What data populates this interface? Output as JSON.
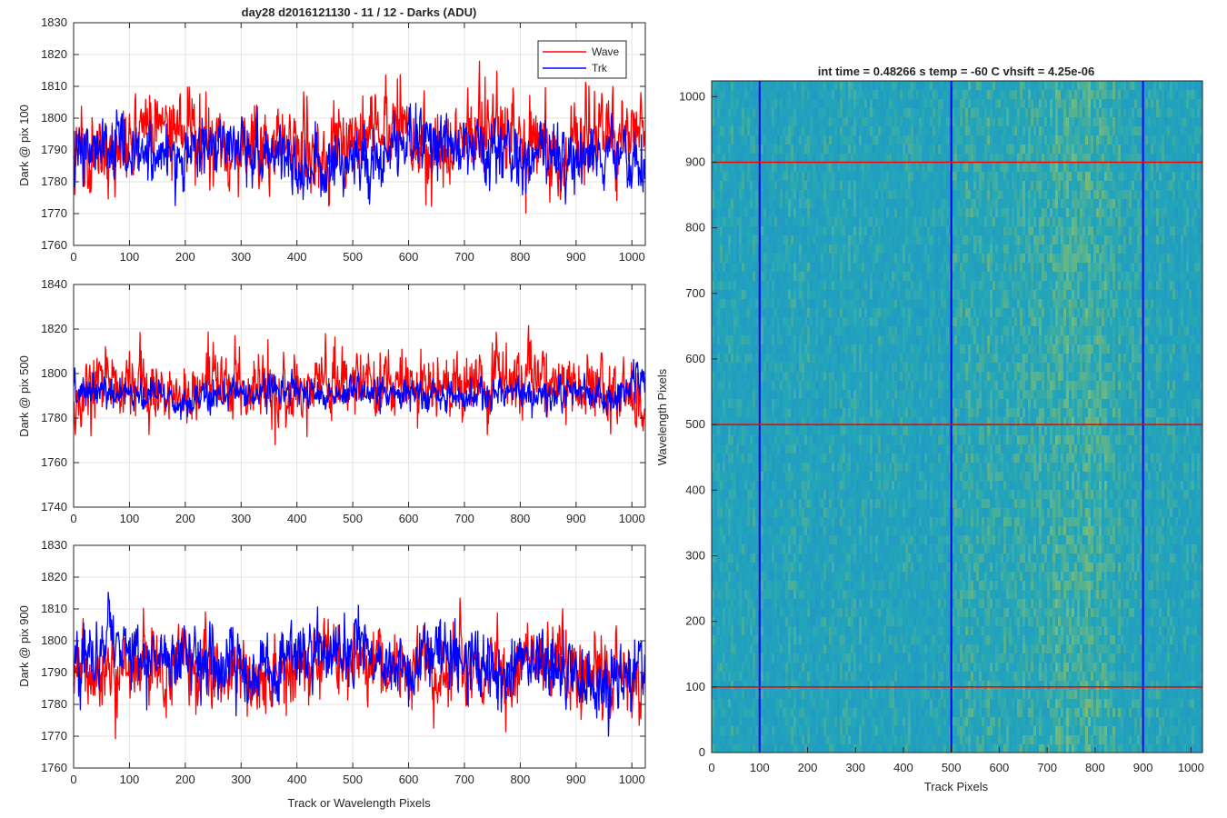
{
  "chart_data": [
    {
      "type": "line",
      "title": "day28 d2016121130 - 11 / 12 - Darks (ADU)",
      "xlabel": "",
      "ylabel": "Dark @ pix 100",
      "xlim": [
        0,
        1024
      ],
      "ylim": [
        1760,
        1830
      ],
      "xticks": [
        0,
        100,
        200,
        300,
        400,
        500,
        600,
        700,
        800,
        900,
        1000
      ],
      "yticks": [
        1760,
        1770,
        1780,
        1790,
        1800,
        1810,
        1820,
        1830
      ],
      "grid": true,
      "legend": "top-right",
      "series_summary": [
        {
          "name": "Wave",
          "color": "#ff0000",
          "mean": 1791,
          "min": 1762,
          "max": 1823
        },
        {
          "name": "Trk",
          "color": "#0000ff",
          "mean": 1790,
          "min": 1767,
          "max": 1812
        }
      ],
      "series": [
        {
          "name": "Wave",
          "color": "#ff0000",
          "x": [
            0,
            64,
            128,
            192,
            256,
            320,
            384,
            448,
            512,
            576,
            640,
            704,
            768,
            832,
            896,
            960,
            1023
          ],
          "values": [
            1792,
            1788,
            1795,
            1800,
            1786,
            1790,
            1796,
            1789,
            1793,
            1798,
            1786,
            1794,
            1797,
            1789,
            1792,
            1795,
            1798
          ]
        },
        {
          "name": "Trk",
          "color": "#0000ff",
          "x": [
            0,
            64,
            128,
            192,
            256,
            320,
            384,
            448,
            512,
            576,
            640,
            704,
            768,
            832,
            896,
            960,
            1023
          ],
          "values": [
            1790,
            1793,
            1788,
            1787,
            1792,
            1791,
            1789,
            1784,
            1786,
            1790,
            1791,
            1792,
            1790,
            1789,
            1788,
            1792,
            1782
          ]
        }
      ]
    },
    {
      "type": "line",
      "title": "",
      "xlabel": "",
      "ylabel": "Dark @ pix 500",
      "xlim": [
        0,
        1024
      ],
      "ylim": [
        1740,
        1840
      ],
      "xticks": [
        0,
        100,
        200,
        300,
        400,
        500,
        600,
        700,
        800,
        900,
        1000
      ],
      "yticks": [
        1740,
        1760,
        1780,
        1800,
        1820,
        1840
      ],
      "grid": true,
      "series_summary": [
        {
          "name": "Wave",
          "color": "#ff0000",
          "mean": 1791,
          "min": 1759,
          "max": 1828
        },
        {
          "name": "Trk",
          "color": "#0000ff",
          "mean": 1791,
          "min": 1776,
          "max": 1810
        }
      ],
      "series": [
        {
          "name": "Wave",
          "color": "#ff0000",
          "x": [
            0,
            64,
            128,
            192,
            256,
            320,
            384,
            448,
            512,
            576,
            640,
            704,
            768,
            832,
            896,
            960,
            1023
          ],
          "values": [
            1790,
            1796,
            1792,
            1789,
            1795,
            1792,
            1790,
            1797,
            1792,
            1795,
            1793,
            1796,
            1797,
            1798,
            1792,
            1794,
            1785
          ]
        },
        {
          "name": "Trk",
          "color": "#0000ff",
          "x": [
            0,
            64,
            128,
            192,
            256,
            320,
            384,
            448,
            512,
            576,
            640,
            704,
            768,
            832,
            896,
            960,
            1023
          ],
          "values": [
            1795,
            1790,
            1793,
            1786,
            1791,
            1790,
            1794,
            1789,
            1793,
            1790,
            1791,
            1790,
            1792,
            1791,
            1792,
            1788,
            1800
          ]
        }
      ]
    },
    {
      "type": "line",
      "title": "",
      "xlabel": "Track or Wavelength Pixels",
      "ylabel": "Dark @ pix 900",
      "xlim": [
        0,
        1024
      ],
      "ylim": [
        1760,
        1830
      ],
      "xticks": [
        0,
        100,
        200,
        300,
        400,
        500,
        600,
        700,
        800,
        900,
        1000
      ],
      "yticks": [
        1760,
        1770,
        1780,
        1790,
        1800,
        1810,
        1820,
        1830
      ],
      "grid": true,
      "series_summary": [
        {
          "name": "Wave",
          "color": "#ff0000",
          "mean": 1792,
          "min": 1766,
          "max": 1821
        },
        {
          "name": "Trk",
          "color": "#0000ff",
          "mean": 1793,
          "min": 1770,
          "max": 1821
        }
      ],
      "series": [
        {
          "name": "Wave",
          "color": "#ff0000",
          "x": [
            0,
            64,
            128,
            192,
            256,
            320,
            384,
            448,
            512,
            576,
            640,
            704,
            768,
            832,
            896,
            960,
            1023
          ],
          "values": [
            1791,
            1790,
            1793,
            1792,
            1790,
            1788,
            1792,
            1794,
            1793,
            1791,
            1795,
            1793,
            1790,
            1794,
            1792,
            1790,
            1789
          ]
        },
        {
          "name": "Trk",
          "color": "#0000ff",
          "x": [
            0,
            64,
            128,
            192,
            256,
            320,
            384,
            448,
            512,
            576,
            640,
            704,
            768,
            832,
            896,
            960,
            1023
          ],
          "values": [
            1792,
            1800,
            1795,
            1794,
            1791,
            1790,
            1796,
            1795,
            1799,
            1790,
            1794,
            1795,
            1791,
            1793,
            1789,
            1786,
            1795
          ]
        }
      ]
    },
    {
      "type": "heatmap",
      "title": "int time = 0.48266 s    temp = -60 C    vhsift = 4.25e-06",
      "xlabel": "Track Pixels",
      "ylabel": "Wavelength Pixels",
      "xlim": [
        0,
        1024
      ],
      "ylim": [
        0,
        1024
      ],
      "xticks": [
        0,
        100,
        200,
        300,
        400,
        500,
        600,
        700,
        800,
        900,
        1000
      ],
      "yticks": [
        0,
        100,
        200,
        300,
        400,
        500,
        600,
        700,
        800,
        900,
        1000
      ],
      "colormap": "parula",
      "colors": {
        "low": "#1f8fcf",
        "mid": "#23a6b8",
        "high": "#b5c94a"
      },
      "vertical_markers": {
        "color": "#0000ff",
        "x": [
          100,
          500,
          900
        ]
      },
      "horizontal_markers": {
        "color": "#ff0000",
        "y": [
          100,
          500,
          900
        ]
      }
    }
  ]
}
